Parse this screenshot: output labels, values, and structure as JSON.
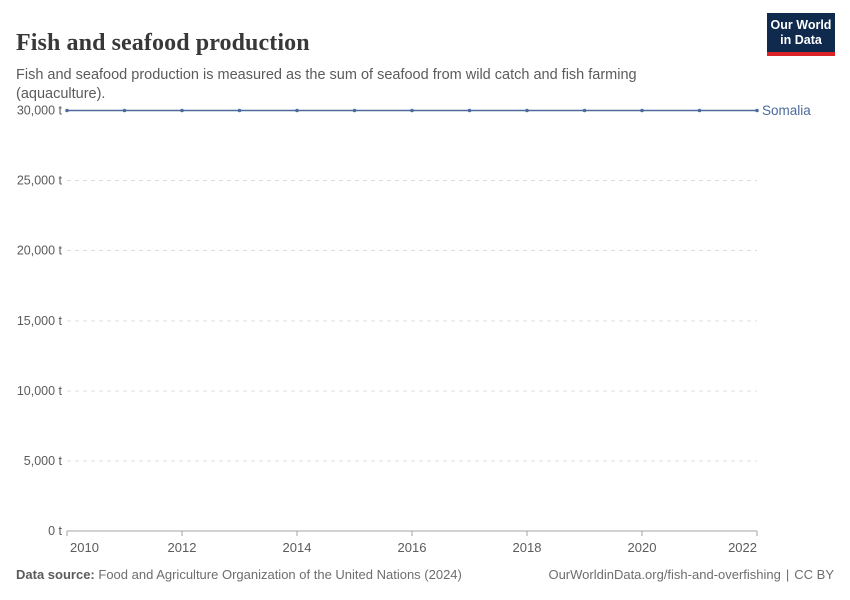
{
  "header": {
    "title": "Fish and seafood production",
    "subtitle": "Fish and seafood production is measured as the sum of seafood from wild catch and fish farming (aquaculture).",
    "logo": {
      "line1": "Our World",
      "line2": "in Data",
      "bg_color": "#102A4E",
      "accent_color": "#DC2327"
    }
  },
  "chart_data": {
    "type": "line",
    "title": "Fish and seafood production",
    "unit": "t",
    "x": [
      2010,
      2011,
      2012,
      2013,
      2014,
      2015,
      2016,
      2017,
      2018,
      2019,
      2020,
      2021,
      2022
    ],
    "series": [
      {
        "name": "Somalia",
        "color": "#4C6A9C",
        "values": [
          30000,
          30000,
          30000,
          30000,
          30000,
          30000,
          30000,
          30000,
          30000,
          30000,
          30000,
          30000,
          30000
        ]
      }
    ],
    "ylim": [
      0,
      30000
    ],
    "yticks": [
      {
        "value": 0,
        "label": "0 t"
      },
      {
        "value": 5000,
        "label": "5,000 t"
      },
      {
        "value": 10000,
        "label": "10,000 t"
      },
      {
        "value": 15000,
        "label": "15,000 t"
      },
      {
        "value": 20000,
        "label": "20,000 t"
      },
      {
        "value": 25000,
        "label": "25,000 t"
      },
      {
        "value": 30000,
        "label": "30,000 t"
      }
    ],
    "xticks": [
      {
        "value": 2010,
        "label": "2010"
      },
      {
        "value": 2012,
        "label": "2012"
      },
      {
        "value": 2014,
        "label": "2014"
      },
      {
        "value": 2016,
        "label": "2016"
      },
      {
        "value": 2018,
        "label": "2018"
      },
      {
        "value": 2020,
        "label": "2020"
      },
      {
        "value": 2022,
        "label": "2022"
      }
    ],
    "grid": "horizontal-dashed",
    "legend_position": "line-end-label",
    "colors": {
      "grid": "#DDDDDD",
      "axis": "#A5A5A5",
      "tick_text": "#5B5B5B"
    }
  },
  "footer": {
    "datasource_label": "Data source:",
    "datasource_text": "Food and Agriculture Organization of the United Nations (2024)",
    "url_text": "OurWorldinData.org/fish-and-overfishing",
    "separator": "|",
    "license_text": "CC BY"
  }
}
